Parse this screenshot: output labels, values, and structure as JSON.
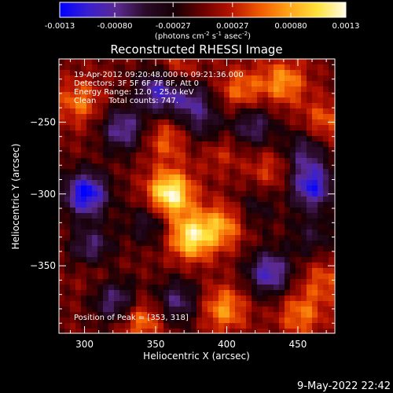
{
  "colorbar": {
    "tick_labels": [
      "-0.0013",
      "-0.00080",
      "-0.00027",
      "0.00027",
      "0.00080",
      "0.0013"
    ],
    "tick_values": [
      -0.0013,
      -0.0008,
      -0.00027,
      0.00027,
      0.0008,
      0.0013
    ],
    "range": [
      -0.0013,
      0.0013
    ],
    "units_prefix": "(photons cm",
    "units_exp1": "-2",
    "units_mid": " s",
    "units_exp2": "-1",
    "units_mid2": " asec",
    "units_exp3": "-2",
    "units_suffix": ")",
    "stops": [
      "#0000ff",
      "#3a1fd0",
      "#5a2a90",
      "#2a0b28",
      "#150005",
      "#6b0000",
      "#b81400",
      "#f25a00",
      "#ffa318",
      "#ffe23a",
      "#fffbe6"
    ]
  },
  "chart_data": {
    "type": "heatmap",
    "title": "Reconstructed RHESSI Image",
    "xlabel": "Heliocentric X (arcsec)",
    "ylabel": "Heliocentric Y (arcsec)",
    "xlim": [
      282,
      476
    ],
    "ylim": [
      -397,
      -206
    ],
    "x_ticks": [
      300,
      350,
      400,
      450
    ],
    "y_ticks": [
      -250,
      -300,
      -350
    ],
    "x_tick_labels": [
      "300",
      "350",
      "400",
      "450"
    ],
    "y_tick_labels": [
      "−250",
      "−300",
      "−350"
    ],
    "annotations": [
      "19-Apr-2012 09:20:48.000 to 09:21:36.000",
      "Detectors: 3F 5F 6F 7F 8F, Att 0",
      "Energy Range: 12.0 - 25.0 keV",
      "Clean     Total counts: 747."
    ],
    "peak_label": "Position of Peak = [353, 318]",
    "peak": [
      353,
      318
    ],
    "zrange": [
      -0.0013,
      0.0013
    ],
    "hot_spots": [
      {
        "x": 360,
        "y": -300,
        "v": 1.0
      },
      {
        "x": 375,
        "y": -330,
        "v": 0.85
      },
      {
        "x": 397,
        "y": -322,
        "v": 0.55
      },
      {
        "x": 306,
        "y": -347,
        "v": 0.45
      },
      {
        "x": 398,
        "y": -380,
        "v": 0.55
      },
      {
        "x": 340,
        "y": -388,
        "v": 0.5
      },
      {
        "x": 452,
        "y": -384,
        "v": 0.45
      },
      {
        "x": 468,
        "y": -360,
        "v": 0.35
      },
      {
        "x": 440,
        "y": -222,
        "v": 0.55
      },
      {
        "x": 410,
        "y": -228,
        "v": 0.45
      },
      {
        "x": 296,
        "y": -236,
        "v": 0.45
      },
      {
        "x": 358,
        "y": -262,
        "v": 0.4
      },
      {
        "x": 468,
        "y": -250,
        "v": 0.4
      },
      {
        "x": 365,
        "y": -215,
        "v": 0.35
      },
      {
        "x": 430,
        "y": -283,
        "v": 0.3
      },
      {
        "x": 395,
        "y": -268,
        "v": 0.3
      }
    ],
    "cold_spots": [
      {
        "x": 301,
        "y": -300,
        "v": -1.0
      },
      {
        "x": 305,
        "y": -340,
        "v": -0.85
      },
      {
        "x": 460,
        "y": -295,
        "v": -0.85
      },
      {
        "x": 430,
        "y": -355,
        "v": -0.75
      },
      {
        "x": 352,
        "y": -228,
        "v": -0.75
      },
      {
        "x": 327,
        "y": -255,
        "v": -0.65
      },
      {
        "x": 322,
        "y": -375,
        "v": -0.6
      },
      {
        "x": 375,
        "y": -235,
        "v": -0.55
      },
      {
        "x": 365,
        "y": -375,
        "v": -0.55
      },
      {
        "x": 418,
        "y": -253,
        "v": -0.55
      },
      {
        "x": 455,
        "y": -270,
        "v": -0.5
      },
      {
        "x": 385,
        "y": -255,
        "v": -0.4
      },
      {
        "x": 345,
        "y": -320,
        "v": -0.4
      },
      {
        "x": 460,
        "y": -330,
        "v": -0.35
      },
      {
        "x": 420,
        "y": -310,
        "v": -0.3
      }
    ]
  },
  "timestamp": "9-May-2022 22:42"
}
